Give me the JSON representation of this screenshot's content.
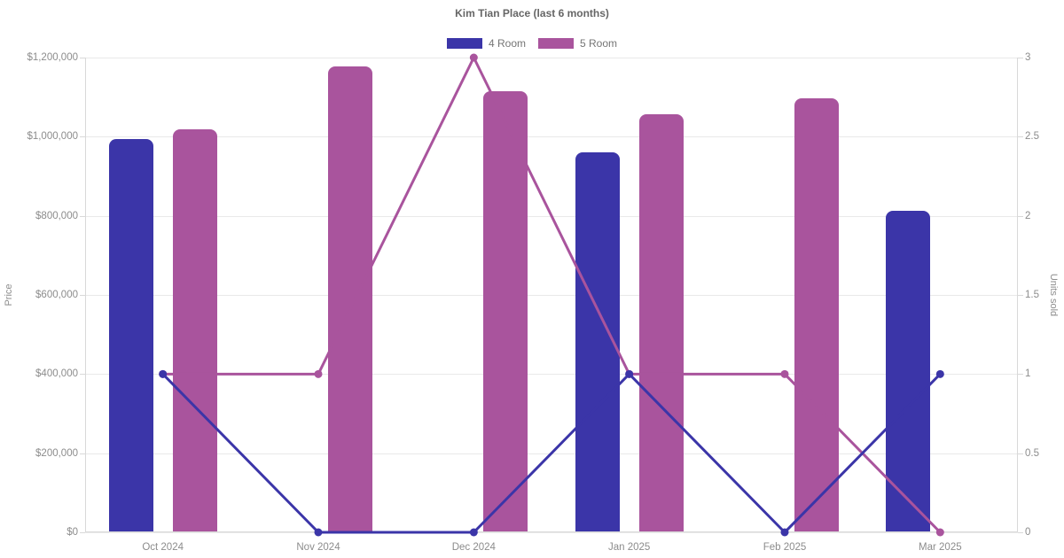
{
  "chart_data": {
    "type": "combo-bar-line",
    "title": "Kim Tian Place (last 6 months)",
    "legend_position": "top",
    "grid": "horizontal-only",
    "categories": [
      "Oct 2024",
      "Nov 2024",
      "Dec 2024",
      "Jan 2025",
      "Feb 2025",
      "Mar 2025"
    ],
    "left_axis": {
      "label": "Price",
      "min": 0,
      "max": 1200000,
      "step": 200000,
      "ticks": [
        "$0",
        "$200,000",
        "$400,000",
        "$600,000",
        "$800,000",
        "$1,000,000",
        "$1,200,000"
      ]
    },
    "right_axis": {
      "label": "Units sold",
      "min": 0,
      "max": 3,
      "step": 0.5,
      "ticks": [
        "0",
        "0.5",
        "1",
        "1.5",
        "2",
        "2.5",
        "3"
      ]
    },
    "series": [
      {
        "name": "4 Room",
        "color": "#3b35a8",
        "bar_axis": "left",
        "bar_prices": [
          995000,
          null,
          null,
          961000,
          null,
          812000
        ],
        "line_axis": "right",
        "line_units": [
          1,
          0,
          0,
          1,
          0,
          1
        ]
      },
      {
        "name": "5 Room",
        "color": "#a9549d",
        "bar_axis": "left",
        "bar_prices": [
          1018000,
          1178000,
          1114000,
          1056000,
          1096000,
          null
        ],
        "line_axis": "right",
        "line_units": [
          1,
          1,
          3,
          1,
          1,
          0
        ]
      }
    ]
  },
  "style_colors": {
    "background": "#ffffff",
    "gridline": "#e9e9e9",
    "axis_border": "#d9d9d9",
    "title_text": "#666666",
    "tick_text": "#8c8c8c",
    "legend_text": "#757575"
  }
}
